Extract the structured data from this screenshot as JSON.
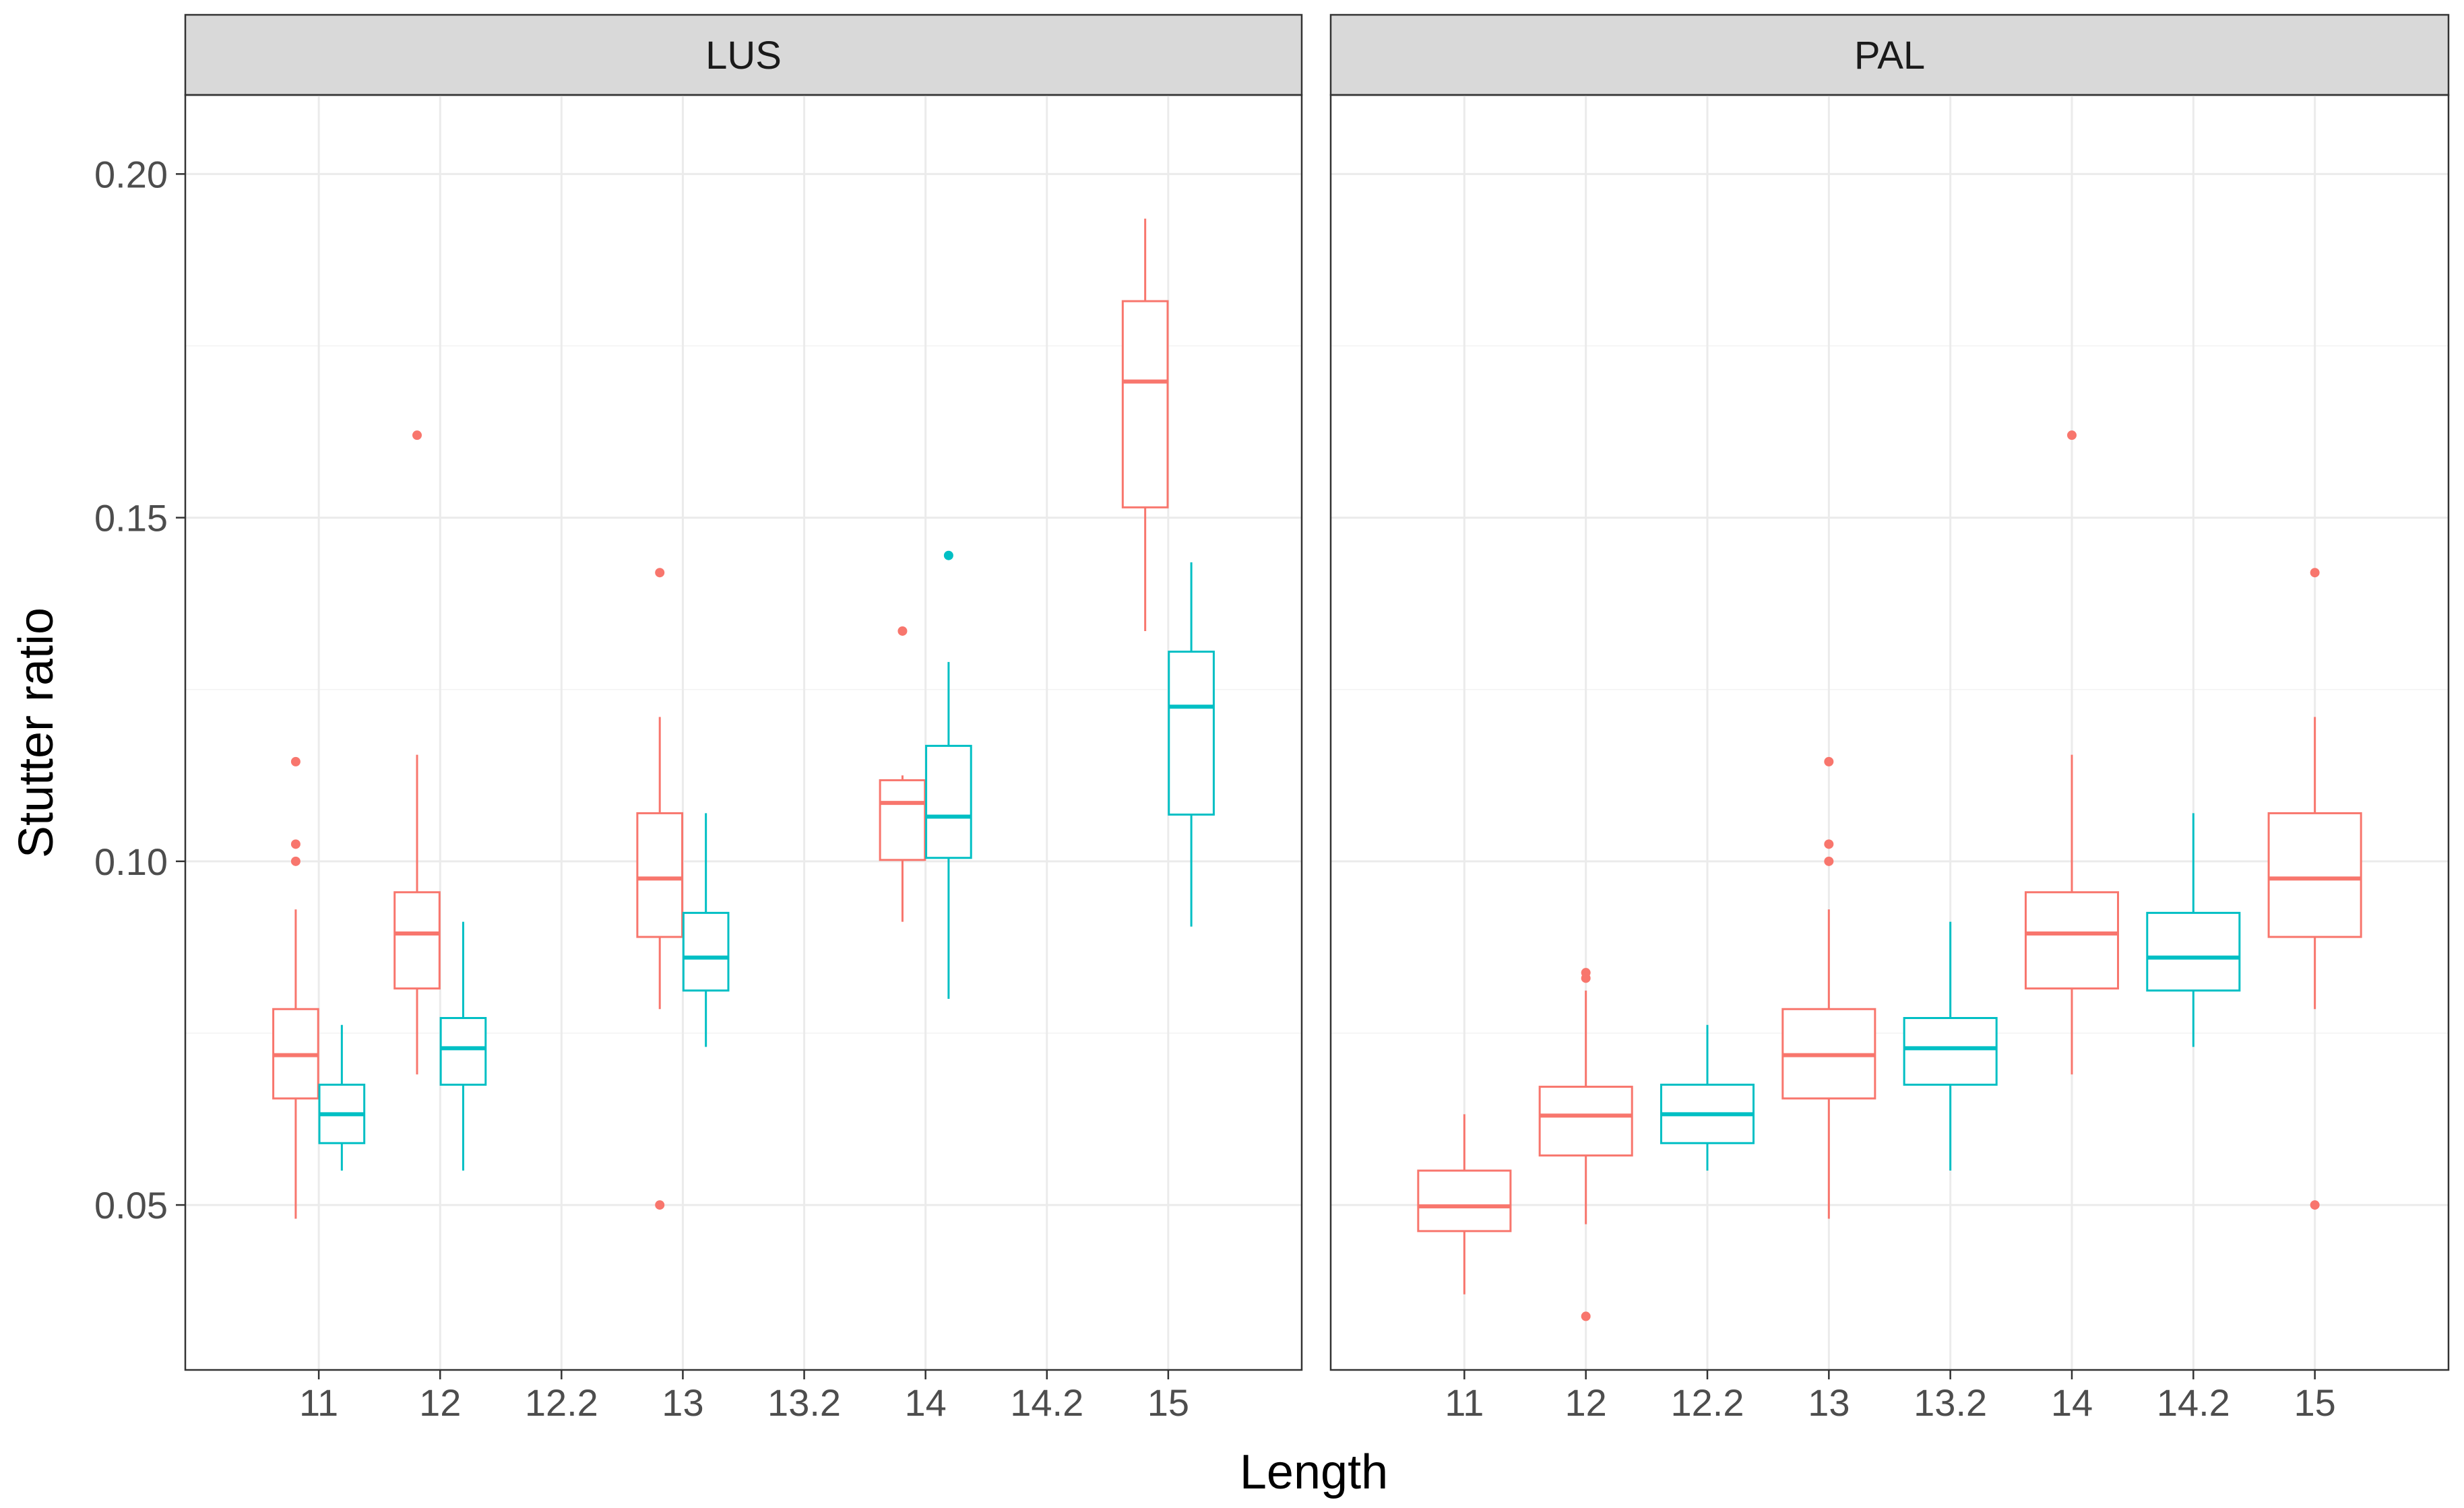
{
  "chart_data": {
    "type": "boxplot",
    "ylabel": "Stutter ratio",
    "xlabel": "Length",
    "ylim": [
      0.026,
      0.2115
    ],
    "yticks": [
      0.05,
      0.1,
      0.15,
      0.2
    ],
    "ytick_labels": [
      "0.05",
      "0.10",
      "0.15",
      "0.20"
    ],
    "colors": {
      "red": "#F8766D",
      "cyan": "#00BFC4",
      "grid": "#ebebeb",
      "strip": "#d9d9d9"
    },
    "facets": [
      {
        "name": "LUS",
        "categories": [
          "11",
          "12",
          "12.2",
          "13",
          "13.2",
          "14",
          "14.2",
          "15"
        ],
        "boxes": [
          {
            "cat": "11",
            "color": "red",
            "offset": -0.19,
            "width": 0.37,
            "q1": 0.0655,
            "median": 0.0718,
            "q3": 0.0785,
            "lower": 0.048,
            "upper": 0.093,
            "outliers": [
              0.1,
              0.1025,
              0.1145
            ]
          },
          {
            "cat": "11",
            "color": "cyan",
            "offset": 0.19,
            "width": 0.37,
            "q1": 0.059,
            "median": 0.0632,
            "q3": 0.0675,
            "lower": 0.055,
            "upper": 0.0762,
            "outliers": []
          },
          {
            "cat": "12",
            "color": "red",
            "offset": -0.19,
            "width": 0.37,
            "q1": 0.0815,
            "median": 0.0895,
            "q3": 0.0955,
            "lower": 0.069,
            "upper": 0.1155,
            "outliers": [
              0.162
            ]
          },
          {
            "cat": "12",
            "color": "cyan",
            "offset": 0.19,
            "width": 0.37,
            "q1": 0.0675,
            "median": 0.0728,
            "q3": 0.0772,
            "lower": 0.055,
            "upper": 0.0912,
            "outliers": []
          },
          {
            "cat": "13",
            "color": "red",
            "offset": -0.19,
            "width": 0.37,
            "q1": 0.089,
            "median": 0.0975,
            "q3": 0.107,
            "lower": 0.0785,
            "upper": 0.121,
            "outliers": [
              0.05,
              0.142
            ]
          },
          {
            "cat": "13",
            "color": "cyan",
            "offset": 0.19,
            "width": 0.37,
            "q1": 0.0812,
            "median": 0.086,
            "q3": 0.0925,
            "lower": 0.073,
            "upper": 0.107,
            "outliers": []
          },
          {
            "cat": "14",
            "color": "red",
            "offset": -0.19,
            "width": 0.37,
            "q1": 0.1002,
            "median": 0.1085,
            "q3": 0.1118,
            "lower": 0.0912,
            "upper": 0.1125,
            "outliers": [
              0.1335
            ]
          },
          {
            "cat": "14",
            "color": "cyan",
            "offset": 0.19,
            "width": 0.37,
            "q1": 0.1005,
            "median": 0.1065,
            "q3": 0.1168,
            "lower": 0.08,
            "upper": 0.129,
            "outliers": [
              0.1445
            ]
          },
          {
            "cat": "15",
            "color": "red",
            "offset": -0.19,
            "width": 0.37,
            "q1": 0.1515,
            "median": 0.1698,
            "q3": 0.1815,
            "lower": 0.1335,
            "upper": 0.1935,
            "outliers": []
          },
          {
            "cat": "15",
            "color": "cyan",
            "offset": 0.19,
            "width": 0.37,
            "q1": 0.1068,
            "median": 0.1225,
            "q3": 0.1305,
            "lower": 0.0905,
            "upper": 0.1435,
            "outliers": []
          }
        ]
      },
      {
        "name": "PAL",
        "categories": [
          "11",
          "12",
          "12.2",
          "13",
          "13.2",
          "14",
          "14.2",
          "15"
        ],
        "boxes": [
          {
            "cat": "11",
            "color": "red",
            "offset": 0,
            "width": 0.76,
            "q1": 0.0462,
            "median": 0.0498,
            "q3": 0.055,
            "lower": 0.037,
            "upper": 0.0632,
            "outliers": []
          },
          {
            "cat": "12",
            "color": "red",
            "offset": 0,
            "width": 0.76,
            "q1": 0.0572,
            "median": 0.063,
            "q3": 0.0672,
            "lower": 0.0472,
            "upper": 0.0812,
            "outliers": [
              0.0338,
              0.083,
              0.0838
            ]
          },
          {
            "cat": "12.2",
            "color": "cyan",
            "offset": 0,
            "width": 0.76,
            "q1": 0.059,
            "median": 0.0632,
            "q3": 0.0675,
            "lower": 0.055,
            "upper": 0.0762,
            "outliers": []
          },
          {
            "cat": "13",
            "color": "red",
            "offset": 0,
            "width": 0.76,
            "q1": 0.0655,
            "median": 0.0718,
            "q3": 0.0785,
            "lower": 0.048,
            "upper": 0.093,
            "outliers": [
              0.1,
              0.1025,
              0.1145
            ]
          },
          {
            "cat": "13.2",
            "color": "cyan",
            "offset": 0,
            "width": 0.76,
            "q1": 0.0675,
            "median": 0.0728,
            "q3": 0.0772,
            "lower": 0.055,
            "upper": 0.0912,
            "outliers": []
          },
          {
            "cat": "14",
            "color": "red",
            "offset": 0,
            "width": 0.76,
            "q1": 0.0815,
            "median": 0.0895,
            "q3": 0.0955,
            "lower": 0.069,
            "upper": 0.1155,
            "outliers": [
              0.162
            ]
          },
          {
            "cat": "14.2",
            "color": "cyan",
            "offset": 0,
            "width": 0.76,
            "q1": 0.0812,
            "median": 0.086,
            "q3": 0.0925,
            "lower": 0.073,
            "upper": 0.107,
            "outliers": []
          },
          {
            "cat": "15",
            "color": "red",
            "offset": 0,
            "width": 0.76,
            "q1": 0.089,
            "median": 0.0975,
            "q3": 0.107,
            "lower": 0.0785,
            "upper": 0.121,
            "outliers": [
              0.05,
              0.142
            ]
          }
        ]
      }
    ]
  }
}
